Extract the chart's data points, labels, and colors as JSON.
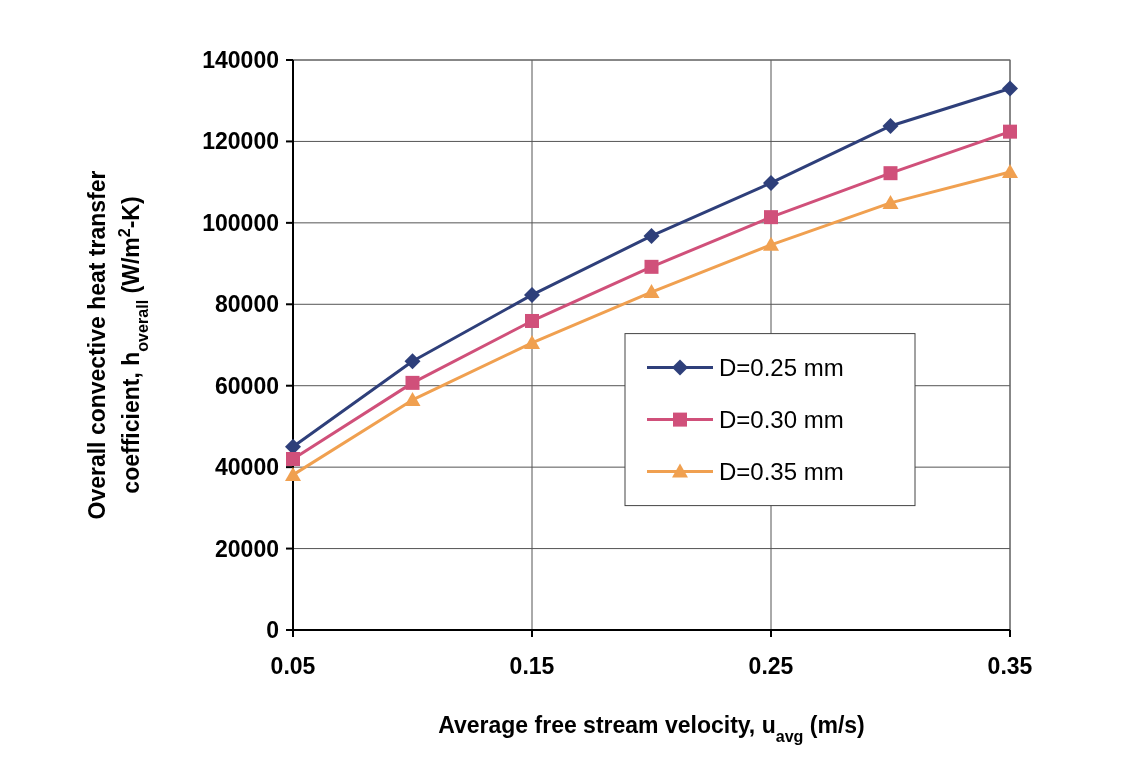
{
  "chart_data": {
    "type": "line",
    "xlabel": "Average free stream velocity, u$_{avg}$ (m/s)",
    "ylabel": "Overall convective heat transfer coefficient, h$_{overall}$ (W/m$^{2}$-K)",
    "x": [
      0.05,
      0.1,
      0.15,
      0.2,
      0.25,
      0.3,
      0.35
    ],
    "series": [
      {
        "name": "D=0.25 mm",
        "color": "#2e3f7a",
        "marker": "diamond",
        "values": [
          45000,
          66000,
          82300,
          96800,
          109800,
          123800,
          133000
        ]
      },
      {
        "name": "D=0.30 mm",
        "color": "#d0507a",
        "marker": "square",
        "values": [
          42000,
          60700,
          75900,
          89200,
          101400,
          112200,
          122400
        ]
      },
      {
        "name": "D=0.35 mm",
        "color": "#f0a050",
        "marker": "triangle",
        "values": [
          38100,
          56500,
          70500,
          83000,
          94600,
          104900,
          112500
        ]
      }
    ],
    "xlim": [
      0.05,
      0.35
    ],
    "xticks": [
      0.05,
      0.15,
      0.25,
      0.35
    ],
    "ylim": [
      0,
      140000
    ],
    "yticks": [
      0,
      20000,
      40000,
      60000,
      80000,
      100000,
      120000,
      140000
    ],
    "grid": true,
    "legend": "right",
    "line_style": "solid"
  }
}
